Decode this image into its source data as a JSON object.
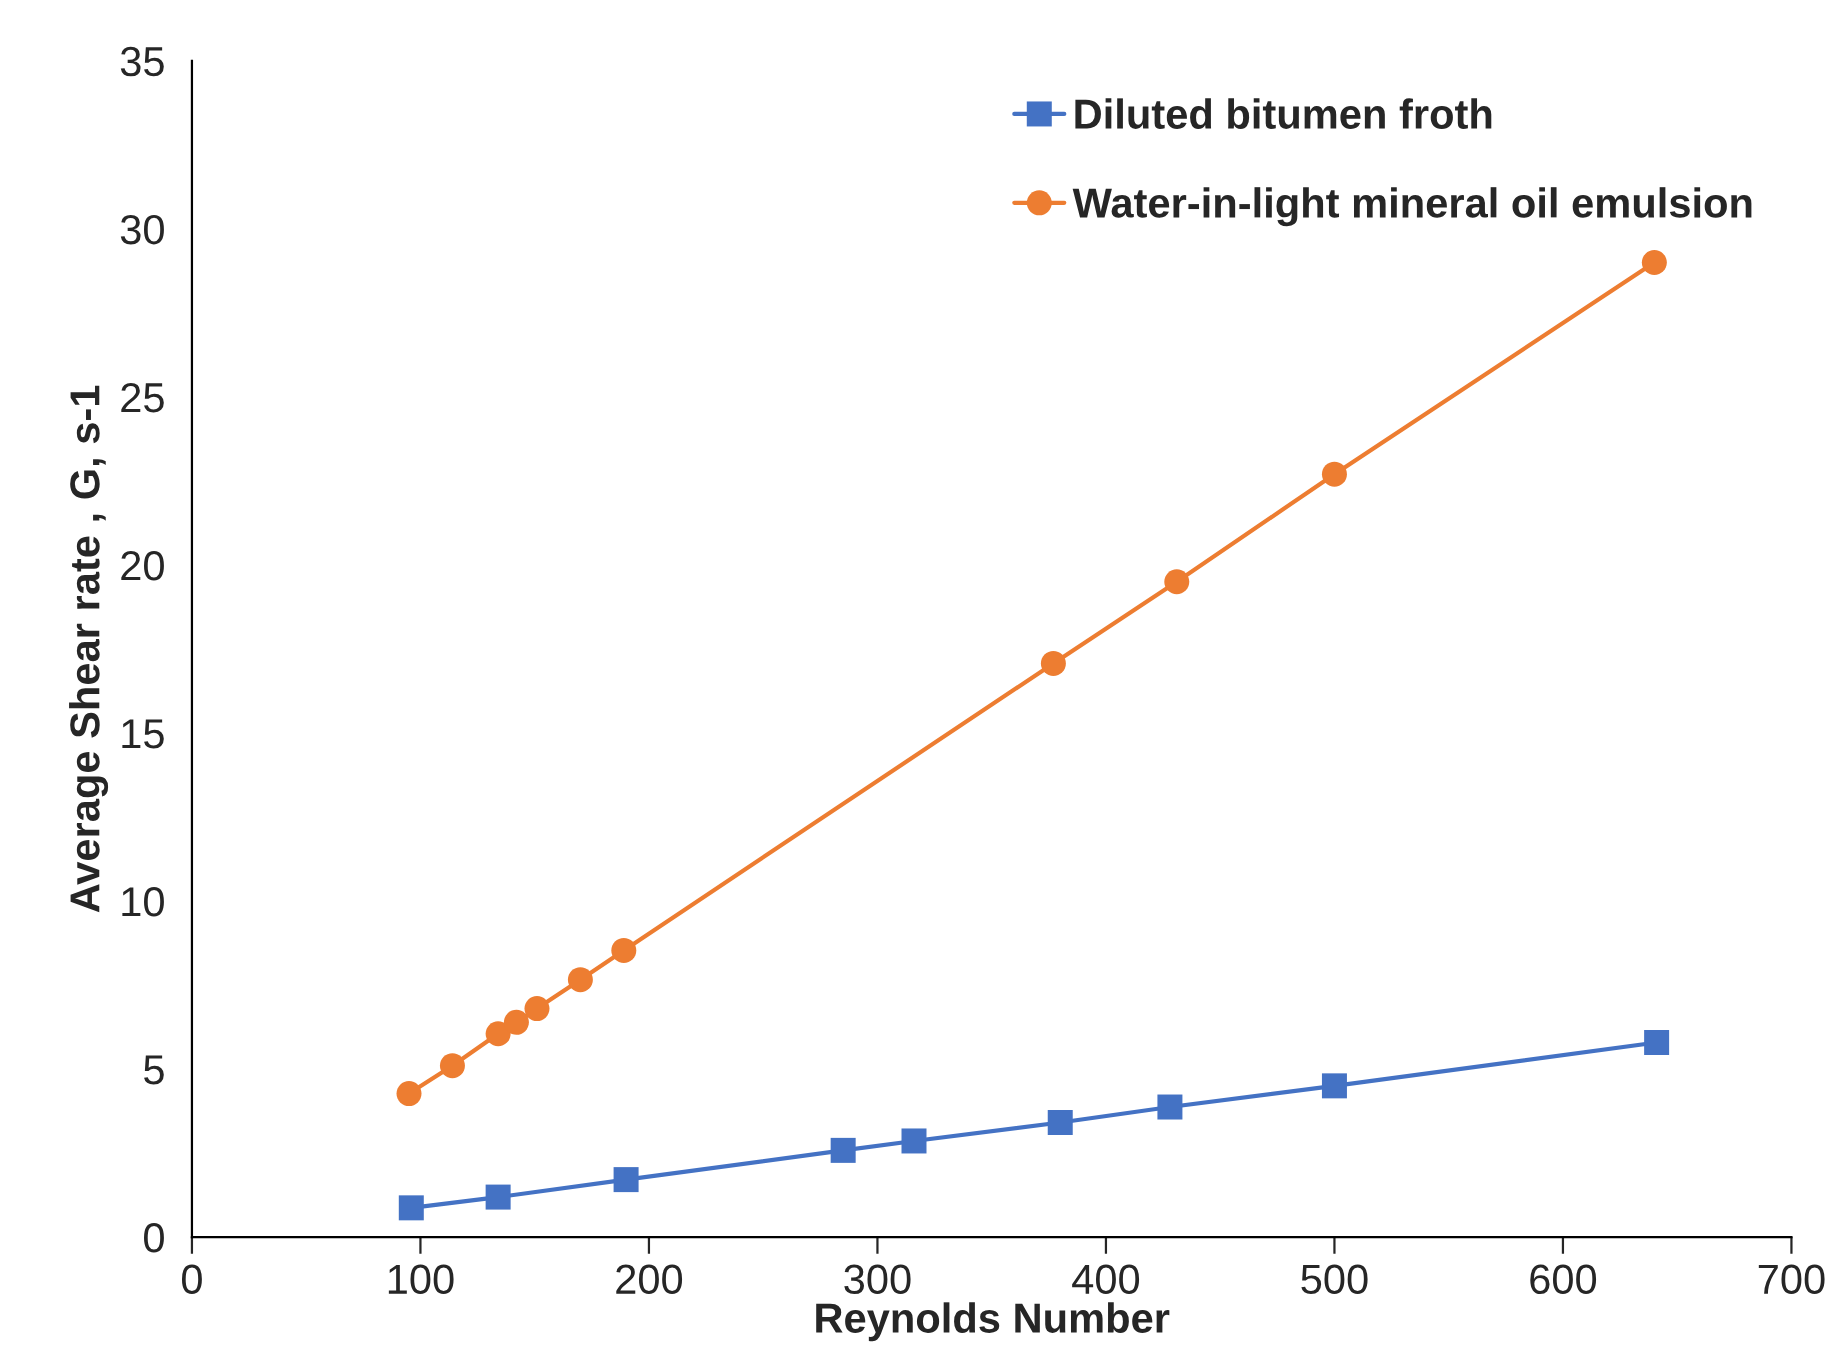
{
  "chart_data": {
    "type": "line",
    "xlabel": "Reynolds Number",
    "ylabel": "Average Shear rate , G, s-1",
    "xlim": [
      0,
      700
    ],
    "xticks": [
      0,
      100,
      200,
      300,
      400,
      500,
      600,
      700
    ],
    "ylim": [
      0,
      35
    ],
    "yticks": [
      0,
      5,
      10,
      15,
      20,
      25,
      30,
      35
    ],
    "grid": false,
    "legend": "top right",
    "series": [
      {
        "name": "Diluted bitumen froth",
        "color": "#4472c4",
        "marker": "square",
        "x": [
          96,
          134,
          190,
          285,
          316,
          380,
          428,
          500,
          641
        ],
        "values": [
          0.87,
          1.19,
          1.71,
          2.58,
          2.86,
          3.41,
          3.87,
          4.5,
          5.79
        ]
      },
      {
        "name": "Water-in-light mineral oil emulsion",
        "color": "#ed7d31",
        "marker": "circle",
        "x": [
          95,
          114,
          134,
          142,
          151,
          170,
          189,
          377,
          431,
          500,
          640
        ],
        "values": [
          4.27,
          5.1,
          6.05,
          6.39,
          6.8,
          7.66,
          8.53,
          17.07,
          19.5,
          22.7,
          29.0
        ]
      }
    ]
  }
}
